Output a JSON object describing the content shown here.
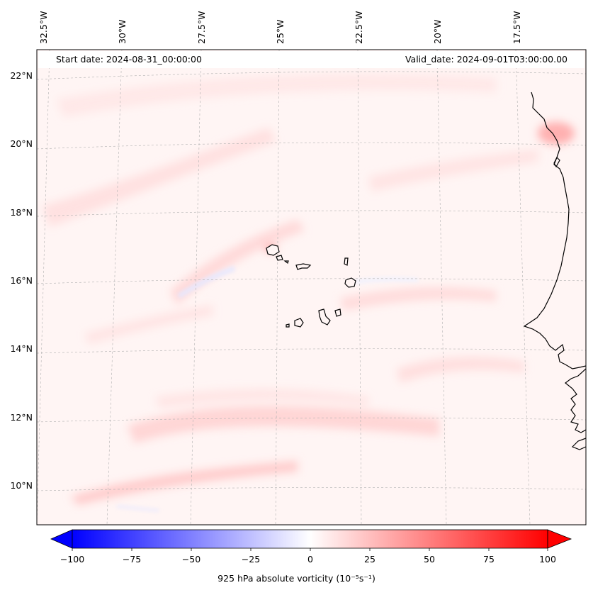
{
  "header": {
    "start_date": "Start date: 2024-08-31_00:00:00",
    "valid_date": "Valid_date: 2024-09-01T03:00:00.00"
  },
  "map": {
    "lon_labels": [
      "32.5°W",
      "30°W",
      "27.5°W",
      "25°W",
      "22.5°W",
      "20°W",
      "17.5°W"
    ],
    "lat_labels": [
      "22°N",
      "20°N",
      "18°N",
      "16°N",
      "14°N",
      "12°N",
      "10°N"
    ],
    "coastline_color": "#000000",
    "gridline_color": "#b0b0b0"
  },
  "colorbar": {
    "ticks": [
      "−100",
      "−75",
      "−50",
      "−25",
      "0",
      "25",
      "50",
      "75",
      "100"
    ],
    "label": "925 hPa absolute vorticity (10⁻⁵s⁻¹)",
    "min_color": "#0000ff",
    "mid_color": "#ffffff",
    "max_color": "#ff0000"
  }
}
